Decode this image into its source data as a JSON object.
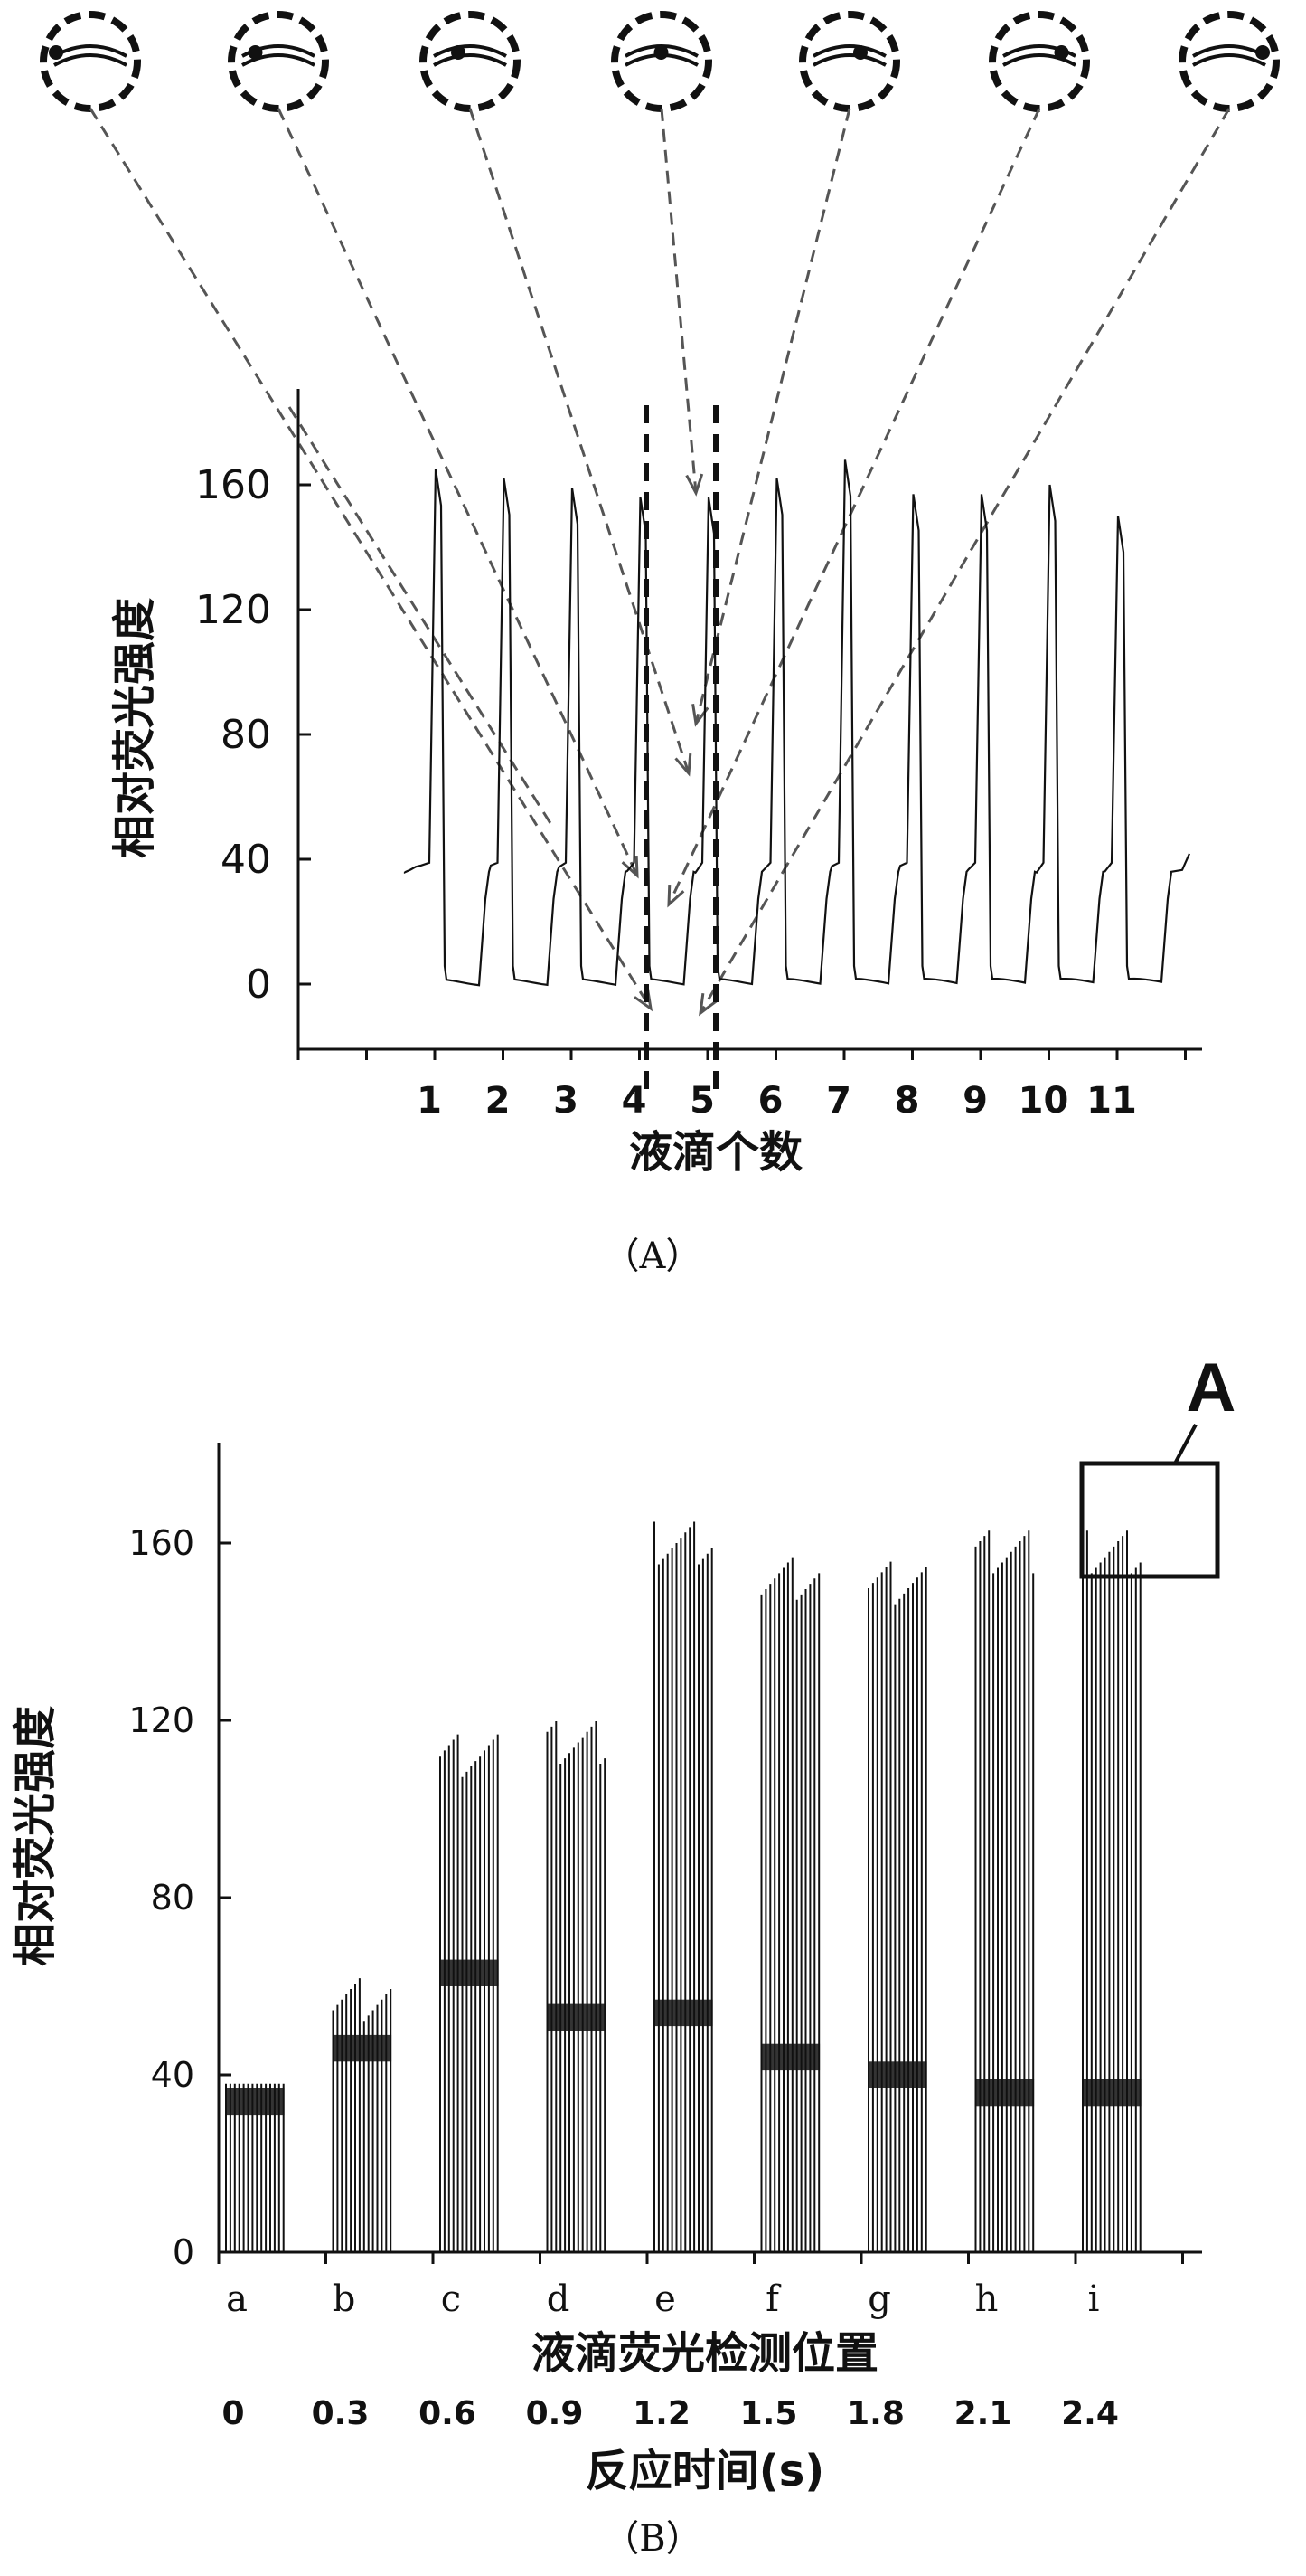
{
  "chart_data": [
    {
      "panel": "A",
      "type": "line",
      "caption": "（A）",
      "xlabel": "液滴个数",
      "ylabel": "相对荧光强度",
      "yticks": [
        0,
        40,
        80,
        120,
        160
      ],
      "ylim": [
        -20,
        190
      ],
      "x_tick_labels": [
        "1",
        "2",
        "3",
        "4",
        "5",
        "6",
        "7",
        "8",
        "9",
        "10",
        "11"
      ],
      "series": [
        {
          "droplet_peaks": [
            165,
            162,
            159,
            156,
            156,
            162,
            168,
            157,
            157,
            160,
            150
          ],
          "baseline": 0,
          "plateau": 36
        }
      ],
      "highlighted_droplet": "5",
      "annotations": {
        "droplet_icons": 7,
        "dashed_guides": "lines linking droplet position illustrations to points on droplet 5"
      }
    },
    {
      "panel": "B",
      "type": "bar",
      "caption": "（B）",
      "xlabel": "液滴荧光检测位置",
      "xlabel2": "反应时间(s)",
      "ylabel": "相对荧光强度",
      "yticks": [
        0,
        40,
        80,
        120,
        160
      ],
      "ylim": [
        0,
        180
      ],
      "categories": [
        "a",
        "b",
        "c",
        "d",
        "e",
        "f",
        "g",
        "h",
        "i"
      ],
      "times": [
        "0",
        "0.3",
        "0.6",
        "0.9",
        "1.2",
        "1.5",
        "1.8",
        "2.1",
        "2.4"
      ],
      "peak_values": [
        38,
        65,
        120,
        123,
        168,
        160,
        159,
        166,
        166
      ],
      "plateau_values": [
        34,
        46,
        63,
        53,
        54,
        44,
        40,
        36,
        36
      ],
      "inset_label": "A",
      "inset_region": {
        "category": "i",
        "y_range": [
          150,
          178
        ]
      }
    }
  ]
}
